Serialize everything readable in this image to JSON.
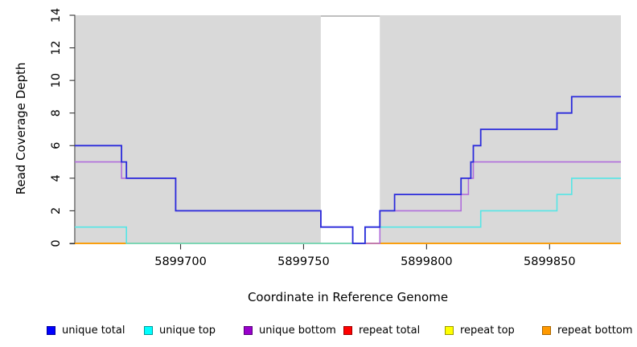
{
  "figure": {
    "xlabel": "Coordinate in Reference Genome",
    "ylabel": "Read Coverage Depth"
  },
  "chart_data": {
    "type": "line",
    "step": "after",
    "title": "",
    "xlabel": "Coordinate in Reference Genome",
    "ylabel": "Read Coverage Depth",
    "xlim": [
      5899657,
      5899879
    ],
    "ylim": [
      0,
      14
    ],
    "x_ticks": [
      5899700,
      5899750,
      5899800,
      5899850
    ],
    "y_ticks": [
      0,
      2,
      4,
      6,
      8,
      10,
      12,
      14
    ],
    "grid": false,
    "plot_bg": "#d9d9d9",
    "axis_color": "#333333",
    "gap_region": {
      "start": 5899757,
      "end": 5899781,
      "fill": "#ffffff",
      "top_border": "#999999"
    },
    "legend_position": "bottom",
    "series": [
      {
        "name": "repeat total",
        "color": "#dd0000",
        "width": 1.6,
        "points": [
          [
            5899657,
            0
          ],
          [
            5899879,
            0
          ]
        ]
      },
      {
        "name": "repeat top",
        "color": "#ededed00-fix",
        "width": 1.6,
        "points": [
          [
            5899657,
            0
          ],
          [
            5899879,
            0
          ]
        ]
      },
      {
        "name": "repeat bottom",
        "color": "#ff9900",
        "width": 1.6,
        "points": [
          [
            5899657,
            0
          ],
          [
            5899879,
            0
          ]
        ]
      },
      {
        "name": "unique bottom",
        "color": "#b06ddb",
        "width": 1.6,
        "points": [
          [
            5899657,
            5
          ],
          [
            5899676,
            4
          ],
          [
            5899698,
            2
          ],
          [
            5899757,
            1
          ],
          [
            5899770,
            0
          ],
          [
            5899781,
            2
          ],
          [
            5899814,
            3
          ],
          [
            5899817,
            4
          ],
          [
            5899819,
            5
          ],
          [
            5899879,
            5
          ]
        ]
      },
      {
        "name": "unique top",
        "color": "#55e6e6",
        "width": 1.6,
        "points": [
          [
            5899657,
            1
          ],
          [
            5899678,
            0
          ],
          [
            5899775,
            1
          ],
          [
            5899822,
            2
          ],
          [
            5899853,
            3
          ],
          [
            5899859,
            4
          ],
          [
            5899879,
            4
          ]
        ]
      },
      {
        "name": "unique total",
        "color": "#2b2bdb",
        "width": 1.8,
        "points": [
          [
            5899657,
            6
          ],
          [
            5899676,
            5
          ],
          [
            5899678,
            4
          ],
          [
            5899698,
            2
          ],
          [
            5899757,
            1
          ],
          [
            5899770,
            0
          ],
          [
            5899775,
            1
          ],
          [
            5899781,
            2
          ],
          [
            5899787,
            3
          ],
          [
            5899814,
            4
          ],
          [
            5899818,
            5
          ],
          [
            5899819,
            6
          ],
          [
            5899822,
            7
          ],
          [
            5899853,
            8
          ],
          [
            5899859,
            9
          ],
          [
            5899879,
            9
          ]
        ]
      }
    ]
  },
  "legend": {
    "items": [
      {
        "label": "unique total",
        "fill": "#0000ff",
        "border": "#000099"
      },
      {
        "label": "unique top",
        "fill": "#00ffff",
        "border": "#009999"
      },
      {
        "label": "unique bottom",
        "fill": "#9900cc",
        "border": "#550077"
      },
      {
        "label": "repeat total",
        "fill": "#ff0000",
        "border": "#990000"
      },
      {
        "label": "repeat top",
        "fill": "#ffff00",
        "border": "#999900"
      },
      {
        "label": "repeat bottom",
        "fill": "#ff9900",
        "border": "#aa6600"
      }
    ]
  }
}
